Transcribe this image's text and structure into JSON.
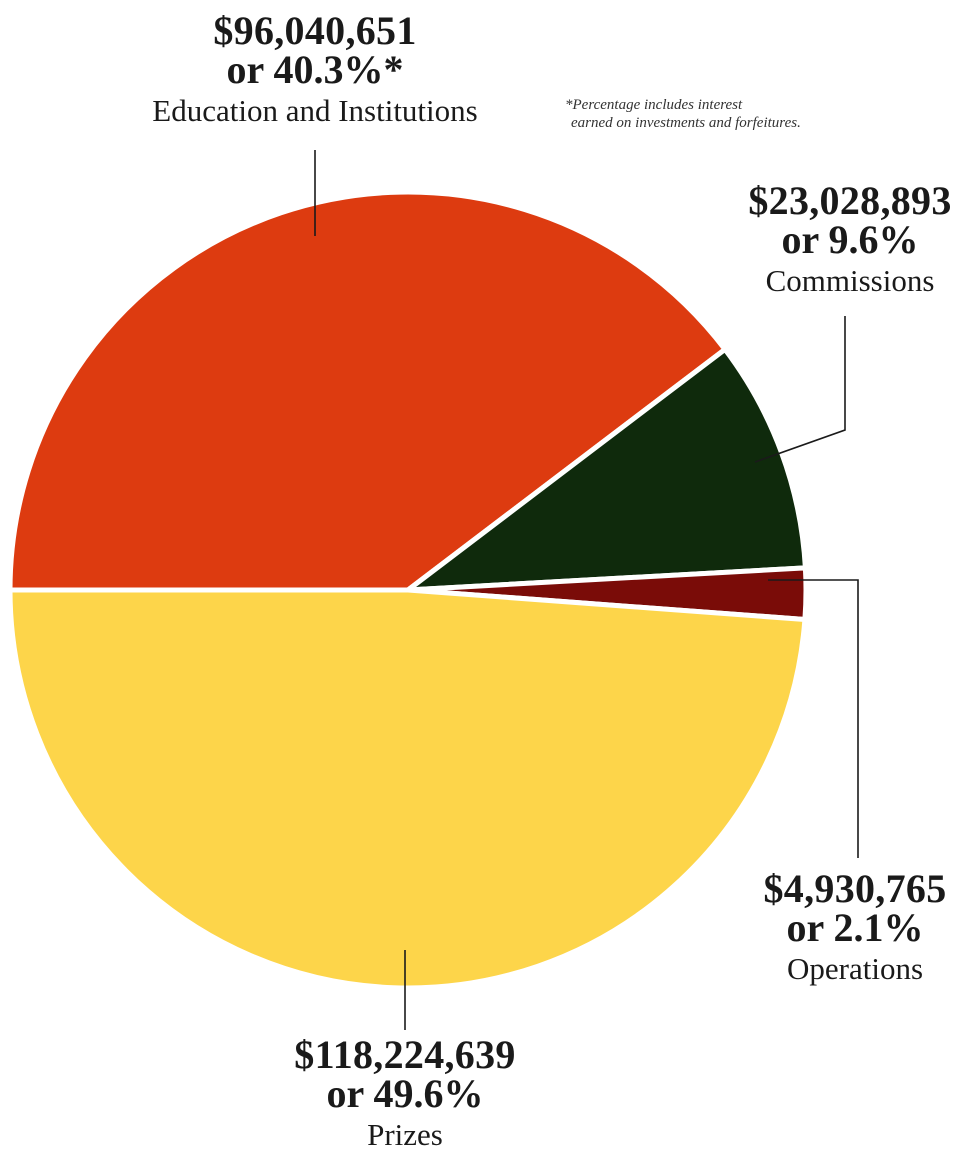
{
  "chart_data": {
    "type": "pie",
    "title": "",
    "slices": [
      {
        "label": "Education and Institutions",
        "amount_text": "$96,040,651",
        "percent_text": "or 40.3%*",
        "value": 40.3,
        "color": "#dd3b10"
      },
      {
        "label": "Commissions",
        "amount_text": "$23,028,893",
        "percent_text": "or 9.6%",
        "value": 9.6,
        "color": "#0f2a0c"
      },
      {
        "label": "Operations",
        "amount_text": "$4,930,765",
        "percent_text": "or 2.1%",
        "value": 2.1,
        "color": "#7a0c08"
      },
      {
        "label": "Prizes",
        "amount_text": "$118,224,639",
        "percent_text": "or 49.6%",
        "value": 49.6,
        "color": "#fdd54a"
      }
    ],
    "footnote": {
      "line1": "*Percentage includes interest",
      "line2": "earned on investments and forfeitures."
    }
  }
}
